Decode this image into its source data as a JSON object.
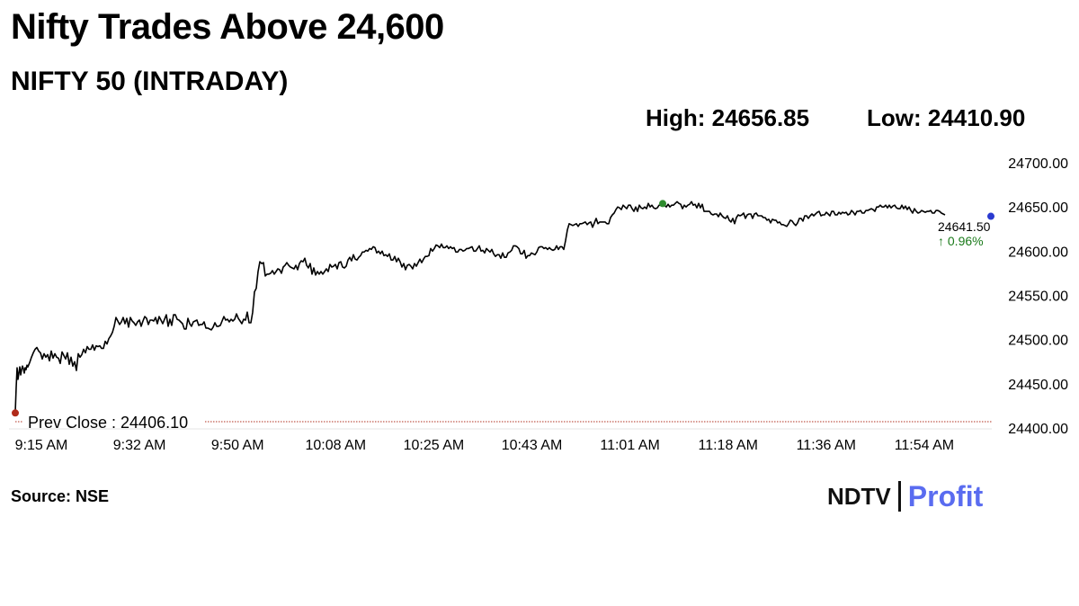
{
  "header": {
    "title": "Nifty Trades Above 24,600",
    "subtitle": "NIFTY 50 (INTRADAY)",
    "high_label": "High: 24656.85",
    "low_label": "Low: 24410.90"
  },
  "footer": {
    "source": "Source: NSE",
    "logo_left": "NDTV",
    "logo_right": "Profit"
  },
  "colors": {
    "line": "#000000",
    "prev_close_line": "#b03020",
    "start_marker": "#b02a1a",
    "high_marker": "#2e8b2e",
    "last_marker": "#2a3ad0",
    "change_text": "#1a7a1a",
    "logo_accent": "#5a6cf0"
  },
  "chart_data": {
    "type": "line",
    "title": "NIFTY 50 (INTRADAY)",
    "xlabel": "",
    "ylabel": "",
    "ylim": [
      24400,
      24700
    ],
    "y_ticks": [
      "24700.00",
      "24650.00",
      "24600.00",
      "24550.00",
      "24500.00",
      "24450.00",
      "24400.00"
    ],
    "x_ticks": [
      "9:15 AM",
      "9:32 AM",
      "9:50 AM",
      "10:08 AM",
      "10:25 AM",
      "10:43 AM",
      "11:01 AM",
      "11:18 AM",
      "11:36 AM",
      "11:54 AM"
    ],
    "prev_close_label": "Prev Close : 24406.10",
    "prev_close_value": 24406.1,
    "last_value_label": "24641.50",
    "change_label": "↑ 0.96%",
    "grid": false,
    "series": [
      {
        "minutes": [
          0,
          1,
          2,
          3,
          4,
          5,
          6,
          7,
          8,
          9,
          10,
          11,
          12,
          13,
          14,
          16,
          18,
          20,
          22,
          24,
          26,
          28,
          30,
          32,
          34,
          36,
          38,
          40,
          42,
          44,
          46,
          48,
          50,
          52,
          54,
          56,
          58,
          60,
          62,
          64,
          66,
          68,
          70,
          72,
          74,
          76,
          78,
          80,
          82,
          84,
          86,
          88,
          90,
          92,
          94,
          96,
          98,
          100,
          102,
          104,
          106,
          108,
          110,
          112,
          114,
          116,
          118,
          120,
          122,
          124,
          126,
          128,
          130,
          132,
          134,
          136,
          138,
          140,
          142,
          144,
          146,
          148,
          150,
          152,
          154,
          156,
          158,
          160,
          162,
          164,
          166,
          168,
          170,
          172,
          174,
          176,
          178,
          180,
          182,
          184,
          186,
          188,
          190,
          192,
          194,
          196,
          198,
          200,
          202,
          204,
          206,
          208,
          210,
          212,
          214,
          216,
          218,
          220,
          222,
          224,
          226,
          228,
          230,
          232,
          234,
          236,
          238,
          240,
          242,
          244,
          246,
          248,
          250,
          252,
          254,
          256,
          258,
          260,
          262,
          264,
          266,
          268,
          270,
          272,
          274,
          276,
          278,
          280,
          282,
          284,
          286,
          288,
          290,
          292,
          294,
          296,
          298,
          300,
          302,
          304,
          306,
          308,
          310,
          312,
          314,
          316,
          318,
          320,
          322,
          324,
          326,
          328,
          330,
          332,
          334,
          336,
          338,
          340,
          342,
          344,
          346,
          348,
          350,
          352,
          354,
          356,
          358,
          360,
          362,
          364,
          366,
          368,
          370,
          372,
          374,
          376,
          378,
          380,
          382,
          384,
          386,
          388,
          390,
          392,
          394,
          396,
          398,
          400,
          402,
          404,
          406,
          408,
          410,
          412,
          414,
          416,
          418,
          420,
          422,
          424,
          426,
          428,
          430,
          432,
          434,
          436,
          438,
          440,
          442,
          444,
          446,
          448,
          450,
          452,
          454,
          456,
          458,
          460,
          462,
          464,
          466,
          468,
          470,
          472,
          474,
          476,
          478,
          480,
          482,
          484,
          486,
          488,
          490,
          492,
          494,
          496,
          498,
          500,
          502,
          504,
          506,
          508,
          510,
          512,
          514,
          516,
          518,
          520,
          522,
          524,
          526,
          528,
          530,
          532,
          534,
          536,
          538,
          540,
          542,
          544,
          546,
          548,
          550,
          552,
          554,
          556,
          558,
          560,
          562,
          564,
          566,
          568,
          570,
          572,
          574,
          576,
          578,
          580,
          582,
          584,
          586,
          588,
          590,
          592,
          594,
          596,
          598,
          600,
          602,
          604,
          606,
          608,
          610,
          612,
          614,
          616,
          618,
          620,
          622,
          624,
          626,
          628,
          630,
          632,
          634,
          636,
          638,
          640,
          642,
          644,
          646,
          648,
          650,
          652,
          654,
          656,
          658,
          660,
          662,
          664,
          666,
          668,
          670,
          672,
          674,
          676,
          678,
          680,
          682,
          684,
          686,
          688,
          690,
          692,
          694,
          696,
          698,
          700,
          702,
          704,
          706,
          708,
          710,
          712,
          714,
          716,
          718,
          720,
          722,
          724,
          726,
          728,
          730,
          732,
          734,
          736,
          738,
          740,
          742,
          744,
          746,
          748,
          750,
          752,
          754,
          756,
          758,
          760,
          762,
          764,
          766,
          768,
          770,
          772,
          774,
          776,
          778,
          780,
          782,
          784,
          786,
          788,
          790,
          792,
          794,
          796,
          798,
          800,
          802,
          804,
          806,
          808,
          810,
          812,
          814,
          816,
          818,
          820,
          822,
          824,
          826,
          828,
          830,
          832,
          834,
          836,
          838,
          840,
          842,
          844,
          846,
          848,
          850,
          852,
          854,
          856,
          858,
          860,
          862,
          864,
          866,
          868,
          870,
          872,
          874,
          876,
          878,
          880,
          882,
          884,
          886,
          888,
          890,
          892,
          894,
          896,
          898,
          900,
          902,
          904,
          906,
          908,
          910,
          912,
          914,
          916,
          918,
          920,
          922,
          924,
          926,
          928,
          930,
          932,
          934,
          936,
          938,
          940,
          942,
          944,
          946,
          948,
          950,
          952,
          954,
          956,
          958,
          960,
          962,
          964,
          966,
          968,
          970,
          972,
          974,
          976,
          978,
          980,
          982,
          984,
          986,
          988,
          990,
          992,
          994,
          996,
          998,
          1000,
          1002,
          1004,
          1006,
          1008,
          1010,
          1012,
          1014,
          1016,
          1018,
          1020,
          1022,
          1024,
          1026,
          1028,
          1030,
          1032,
          1034,
          1036,
          1038,
          1040,
          1042,
          1044,
          1046,
          1048,
          1050,
          1052,
          1054,
          1056,
          1058,
          1060,
          1062,
          1064,
          1066,
          1068,
          1070,
          1072,
          1074,
          1076,
          1078,
          1080,
          1082,
          1084,
          1086
        ],
        "values": [
          24418,
          24446,
          24468,
          24455,
          24462,
          24469,
          24460,
          24466,
          24470,
          24467,
          24462,
          24468,
          24466,
          24471,
          24469,
          24474,
          24480,
          24485,
          24489,
          24491,
          24487,
          24485,
          24478,
          24484,
          24480,
          24483,
          24476,
          24487,
          24479,
          24484,
          24480,
          24479,
          24473,
          24486,
          24482,
          24478,
          24485,
          24472,
          24480,
          24470,
          24475,
          24465,
          24484,
          24480,
          24483,
          24489,
          24485,
          24492,
          24489,
          24489,
          24494,
          24488,
          24493,
          24492,
          24493,
          24490,
          24490,
          24498,
          24495,
          24501,
          24504,
          24508,
          24515,
          24525,
          24521,
          24517,
          24520,
          24525,
          24518,
          24524,
          24514,
          24525,
          24521,
          24519,
          24516,
          24520,
          24522,
          24515,
          24521,
          24526,
          24524,
          24517,
          24522,
          24522,
          24521,
          24525,
          24518,
          24526,
          24522,
          24518,
          24523,
          24528,
          24515,
          24523,
          24516,
          24528,
          24528,
          24523,
          24522,
          24520,
          24518,
          24512,
          24512,
          24524,
          24518,
          24515,
          24520,
          24521,
          24522,
          24516,
          24517,
          24517,
          24520,
          24513,
          24513,
          24512,
          24511,
          24514,
          24519,
          24515,
          24515,
          24516,
          24521,
          24526,
          24522,
          24523,
          24520,
          24523,
          24521,
          24523,
          24529,
          24524,
          24521,
          24518,
          24523,
          24522,
          24531,
          24519,
          24519,
          24531,
          24554,
          24558,
          24577,
          24588,
          24586,
          24587,
          24572,
          24574,
          24574,
          24575,
          24578,
          24574,
          24577,
          24580,
          24579,
          24575,
          24582,
          24584,
          24587,
          24584,
          24582,
          24581,
          24580,
          24584,
          24579,
          24586,
          24589,
          24588,
          24592,
          24584,
          24581,
          24586,
          24574,
          24581,
          24573,
          24577,
          24574,
          24577,
          24574,
          24577,
          24580,
          24577,
          24585,
          24582,
          24583,
          24585,
          24580,
          24587,
          24588,
          24582,
          24581,
          24583,
          24590,
          24593,
          24589,
          24596,
          24591,
          24590,
          24593,
          24595,
          24599,
          24599,
          24601,
          24600,
          24603,
          24602,
          24605,
          24604,
          24598,
          24600,
          24597,
          24600,
          24595,
          24596,
          24594,
          24597,
          24590,
          24590,
          24594,
          24588,
          24592,
          24588,
          24582,
          24586,
          24579,
          24584,
          24585,
          24583,
          24580,
          24586,
          24583,
          24587,
          24591,
          24587,
          24591,
          24594,
          24594,
          24595,
          24603,
          24600,
          24603,
          24607,
          24606,
          24604,
          24608,
          24604,
          24604,
          24606,
          24603,
          24605,
          24603,
          24604,
          24599,
          24599,
          24602,
          24602,
          24600,
          24601,
          24603,
          24603,
          24604,
          24605,
          24600,
          24600,
          24603,
          24606,
          24600,
          24601,
          24598,
          24603,
          24601,
          24599,
          24602,
          24597,
          24594,
          24596,
          24596,
          24592,
          24598,
          24593,
          24593,
          24598,
          24599,
          24601,
          24606,
          24606,
          24605,
          24603,
          24597,
          24597,
          24601,
          24592,
          24595,
          24595,
          24598,
          24597,
          24596,
          24599,
          24604,
          24605,
          24605,
          24603,
          24604,
          24602,
          24604,
          24602,
          24601,
          24602,
          24606,
          24602,
          24605,
          24605,
          24602,
          24612,
          24624,
          24631,
          24630,
          24629,
          24630,
          24631,
          24628,
          24631,
          24631,
          24632,
          24633,
          24630,
          24632,
          24633,
          24627,
          24632,
          24637,
          24631,
          24633,
          24633,
          24633,
          24633,
          24631,
          24631,
          24638,
          24641,
          24643,
          24647,
          24650,
          24649,
          24647,
          24652,
          24650,
          24648,
          24652,
          24652,
          24648,
          24645,
          24650,
          24645,
          24652,
          24649,
          24648,
          24650,
          24648,
          24654,
          24650,
          24652,
          24649,
          24648,
          24649,
          24652,
          24652,
          24651,
          24652,
          24650,
          24653,
          24650,
          24652,
          24652,
          24654,
          24656,
          24654,
          24653,
          24648,
          24652,
          24650,
          24652,
          24653,
          24656,
          24652,
          24653,
          24649,
          24654,
          24649,
          24653,
          24645,
          24645,
          24645,
          24645,
          24642,
          24641,
          24642,
          24642,
          24639,
          24643,
          24640,
          24638,
          24637,
          24640,
          24635,
          24633,
          24637,
          24631,
          24638,
          24641,
          24640,
          24641,
          24643,
          24637,
          24641,
          24642,
          24642,
          24637,
          24642,
          24643,
          24640,
          24640,
          24640,
          24638,
          24638,
          24635,
          24636,
          24632,
          24636,
          24635,
          24635,
          24632,
          24633,
          24630,
          24630,
          24629,
          24628,
          24631,
          24635,
          24634,
          24631,
          24629,
          24632,
          24637,
          24637,
          24634,
          24640,
          24640,
          24637,
          24640,
          24642,
          24640,
          24642,
          24644,
          24645,
          24640,
          24641,
          24641,
          24644,
          24642,
          24640,
          24645,
          24645,
          24641,
          24641,
          24644,
          24642,
          24644,
          24643,
          24644,
          24641,
          24642,
          24646,
          24644,
          24641,
          24645,
          24645,
          24646,
          24643,
          24643,
          24646,
          24646,
          24647,
          24648,
          24647,
          24645,
          24650,
          24650,
          24652,
          24650,
          24650,
          24652,
          24649,
          24652,
          24649,
          24651,
          24652,
          24649,
          24648,
          24648,
          24652,
          24648,
          24651,
          24647,
          24650,
          24646,
          24643,
          24648,
          24645,
          24643,
          24644,
          24646,
          24645,
          24644,
          24645,
          24645,
          24646,
          24643,
          24643,
          24646,
          24646,
          24645,
          24643,
          24642,
          24641
        ]
      }
    ],
    "high": {
      "minute": 720,
      "value": 24656.85
    },
    "start": {
      "minute": 0,
      "value": 24418
    },
    "last": {
      "minute": 1086,
      "value": 24641.5
    }
  }
}
